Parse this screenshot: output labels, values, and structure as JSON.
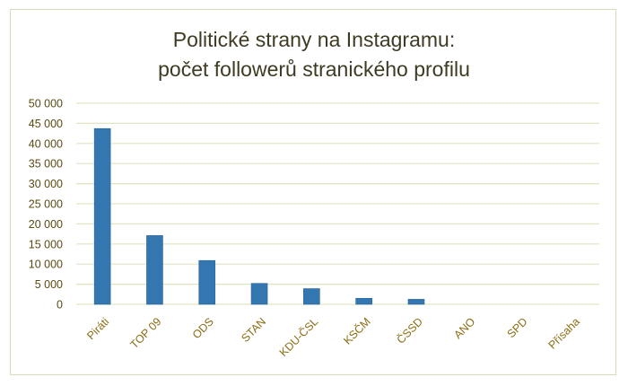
{
  "chart_data": {
    "type": "bar",
    "title": [
      "Politické strany na Instagramu:",
      "počet followerů stranického profilu"
    ],
    "xlabel": "",
    "ylabel": "",
    "categories": [
      "Piráti",
      "TOP 09",
      "ODS",
      "STAN",
      "KDU-ČSL",
      "KSČM",
      "ČSSD",
      "ANO",
      "SPD",
      "Přísaha"
    ],
    "values": [
      43700,
      17100,
      10900,
      5200,
      3900,
      1500,
      1250,
      0,
      0,
      0
    ],
    "ylim": [
      0,
      50000
    ],
    "yticks": [
      0,
      5000,
      10000,
      15000,
      20000,
      25000,
      30000,
      35000,
      40000,
      45000,
      50000
    ],
    "ytick_labels": [
      "0",
      "5 000",
      "10 000",
      "15 000",
      "20 000",
      "25 000",
      "30 000",
      "35 000",
      "40 000",
      "45 000",
      "50 000"
    ],
    "grid": true,
    "legend": "none",
    "colors": {
      "bar": "#3476b0",
      "grid": "#e3e3c4",
      "frame": "#d9d9b8"
    }
  }
}
